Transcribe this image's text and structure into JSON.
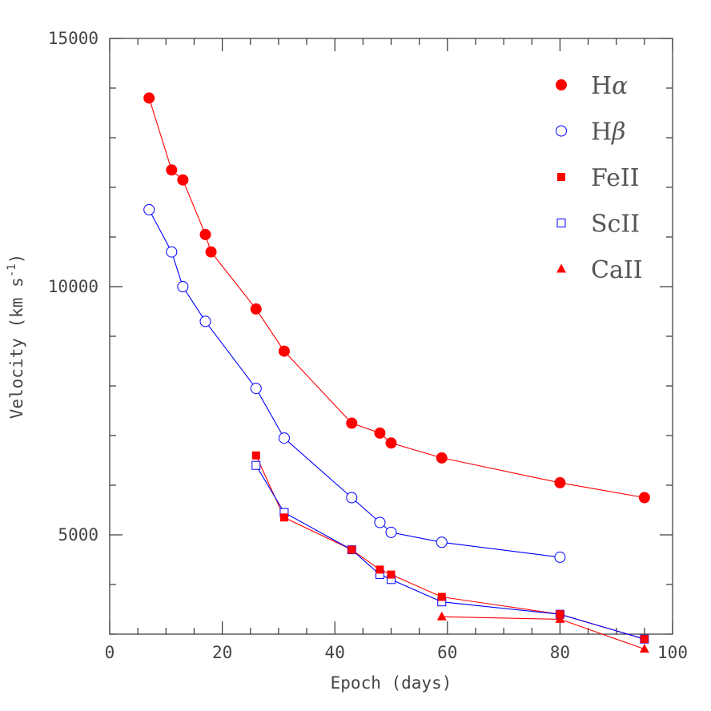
{
  "chart_data": {
    "type": "line",
    "xlabel": "Epoch (days)",
    "ylabel_main": "Velocity (km s",
    "ylabel_sup": "-1",
    "ylabel_close": ")",
    "xlim": [
      0,
      100
    ],
    "ylim": [
      3000,
      15000
    ],
    "xticks": [
      0,
      20,
      40,
      60,
      80,
      100
    ],
    "yticks": [
      5000,
      10000,
      15000
    ],
    "xtick_labels": [
      "0",
      "20",
      "40",
      "60",
      "80",
      "100"
    ],
    "ytick_labels": [
      "5000",
      "10000",
      "15000"
    ],
    "grid": false,
    "legend_position": "top-right",
    "series": [
      {
        "name": "Hα",
        "label_base": "H",
        "label_greek": "α",
        "label_rest": "",
        "marker": "filled-circle",
        "color": "#ff0000",
        "x": [
          7,
          11,
          13,
          17,
          18,
          26,
          31,
          43,
          48,
          50,
          59,
          80,
          95
        ],
        "y": [
          13800,
          12350,
          12150,
          11050,
          10700,
          9550,
          8700,
          7250,
          7050,
          6850,
          6550,
          6050,
          5750
        ]
      },
      {
        "name": "Hβ",
        "label_base": "H",
        "label_greek": "β",
        "label_rest": "",
        "marker": "open-circle",
        "color": "#0000ff",
        "x": [
          7,
          11,
          13,
          17,
          26,
          31,
          43,
          48,
          50,
          59,
          80
        ],
        "y": [
          11550,
          10700,
          10000,
          9300,
          7950,
          6950,
          5750,
          5250,
          5050,
          4850,
          4550
        ]
      },
      {
        "name": "FeII",
        "label_base": "FeII",
        "label_greek": "",
        "label_rest": "",
        "marker": "filled-square",
        "color": "#ff0000",
        "x": [
          26,
          31,
          43,
          48,
          50,
          59,
          80,
          95
        ],
        "y": [
          6600,
          5350,
          4700,
          4300,
          4200,
          3750,
          3400,
          2900
        ]
      },
      {
        "name": "ScII",
        "label_base": "ScII",
        "label_greek": "",
        "label_rest": "",
        "marker": "open-square",
        "color": "#0000ff",
        "x": [
          26,
          31,
          43,
          48,
          50,
          59,
          80,
          95
        ],
        "y": [
          6400,
          5450,
          4700,
          4200,
          4100,
          3650,
          3400,
          2900
        ]
      },
      {
        "name": "CaII",
        "label_base": "CaII",
        "label_greek": "",
        "label_rest": "",
        "marker": "filled-triangle",
        "color": "#ff0000",
        "x": [
          59,
          80,
          95
        ],
        "y": [
          3350,
          3300,
          2700
        ]
      }
    ]
  }
}
